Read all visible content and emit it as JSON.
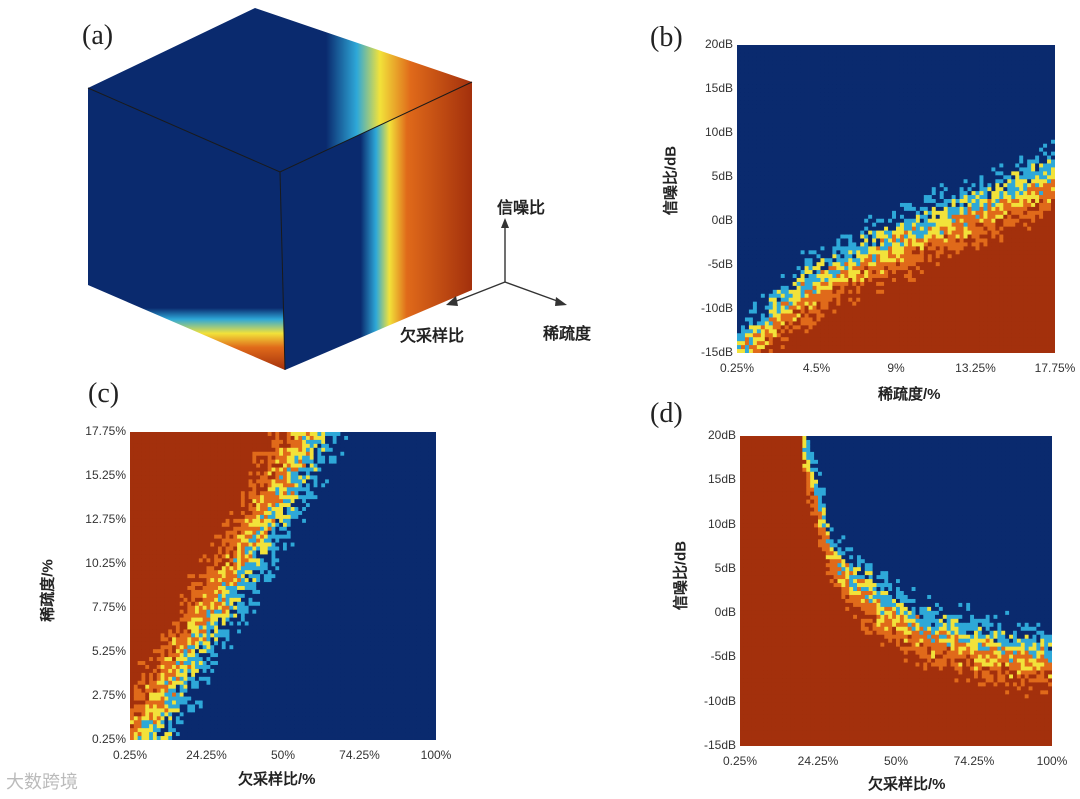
{
  "panels": {
    "a": "(a)",
    "b": "(b)",
    "c": "(c)",
    "d": "(d)"
  },
  "cube_axes": {
    "snr": "信噪比",
    "sparsity": "稀疏度",
    "undersampling": "欠采样比"
  },
  "colors": {
    "blue": "#0a2a6e",
    "cyan": "#2ea8d8",
    "yellow": "#f2e23a",
    "orange": "#e06a1a",
    "red": "#a3300c"
  },
  "watermark": "大数跨境",
  "chart_data": [
    {
      "id": "b",
      "type": "heatmap",
      "xlabel": "稀疏度/%",
      "ylabel": "信噪比/dB",
      "x_ticks": [
        "0.25%",
        "4.5%",
        "9%",
        "13.25%",
        "17.75%"
      ],
      "y_ticks": [
        "20dB",
        "15dB",
        "10dB",
        "5dB",
        "0dB",
        "-5dB",
        "-10dB",
        "-15dB"
      ],
      "xlim": [
        0.25,
        17.75
      ],
      "ylim": [
        -15,
        20
      ],
      "boundary_snr_dB": [
        -15,
        -8,
        -4,
        -1,
        2,
        5
      ],
      "boundary_x": [
        0.25,
        3.75,
        7.25,
        10.75,
        14.25,
        17.75
      ]
    },
    {
      "id": "c",
      "type": "heatmap",
      "xlabel": "欠采样比/%",
      "ylabel": "稀疏度/%",
      "x_ticks": [
        "0.25%",
        "24.25%",
        "50%",
        "74.25%",
        "100%"
      ],
      "y_ticks": [
        "17.75%",
        "15.25%",
        "12.75%",
        "10.25%",
        "7.75%",
        "5.25%",
        "2.75%",
        "0.25%"
      ],
      "xlim": [
        0.25,
        100
      ],
      "ylim": [
        0.25,
        17.75
      ],
      "boundary_undersampling_pct": [
        5,
        15,
        27,
        39,
        50,
        60
      ],
      "boundary_y": [
        0.25,
        3.75,
        7.25,
        10.75,
        14.25,
        17.75
      ]
    },
    {
      "id": "d",
      "type": "heatmap",
      "xlabel": "欠采样比/%",
      "ylabel": "信噪比/dB",
      "x_ticks": [
        "0.25%",
        "24.25%",
        "50%",
        "74.25%",
        "100%"
      ],
      "y_ticks": [
        "20dB",
        "15dB",
        "10dB",
        "5dB",
        "0dB",
        "-5dB",
        "-10dB",
        "-15dB"
      ],
      "xlim": [
        0.25,
        100
      ],
      "ylim": [
        -15,
        20
      ],
      "boundary_snr_dB": [
        20,
        6,
        1,
        -2,
        -4,
        -5
      ],
      "boundary_x": [
        20,
        30,
        45,
        60,
        80,
        100
      ]
    }
  ]
}
